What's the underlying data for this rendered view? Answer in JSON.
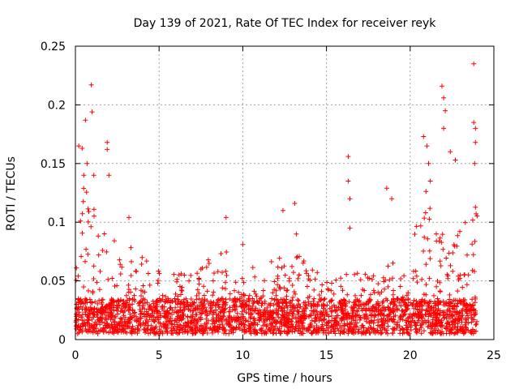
{
  "chart_data": {
    "type": "scatter",
    "title": "Day 139 of 2021, Rate Of TEC Index for receiver reyk",
    "xlabel": "GPS time / hours",
    "ylabel": "ROTI / TECUs",
    "xlim": [
      0,
      25
    ],
    "ylim": [
      0,
      0.25
    ],
    "xticks": [
      0,
      5,
      10,
      15,
      20,
      25
    ],
    "xtick_labels": [
      "0",
      "5",
      "10",
      "15",
      "20",
      "25"
    ],
    "yticks": [
      0,
      0.05,
      0.1,
      0.15,
      0.2,
      0.25
    ],
    "ytick_labels": [
      "0",
      "0.05",
      "0.1",
      "0.15",
      "0.2",
      "0.25"
    ],
    "grid": true,
    "marker": "+",
    "color": "#ff0000",
    "series": [
      {
        "name": "ROTI",
        "data_extent": {
          "x_min": 0.0,
          "x_max": 24.0
        },
        "baseline_range": [
          0.005,
          0.035
        ],
        "envelope": {
          "x": [
            0,
            0.5,
            1,
            1.5,
            2,
            2.5,
            3,
            3.5,
            4,
            5,
            6,
            7,
            8,
            9,
            10,
            11,
            12,
            13,
            14,
            15,
            16,
            17,
            18,
            19,
            20,
            20.5,
            21,
            21.5,
            22,
            22.5,
            23,
            23.5,
            24
          ],
          "upper": [
            0.06,
            0.13,
            0.12,
            0.09,
            0.11,
            0.08,
            0.09,
            0.08,
            0.07,
            0.06,
            0.055,
            0.06,
            0.07,
            0.08,
            0.06,
            0.065,
            0.07,
            0.075,
            0.07,
            0.05,
            0.065,
            0.055,
            0.06,
            0.07,
            0.06,
            0.12,
            0.13,
            0.12,
            0.11,
            0.1,
            0.1,
            0.11,
            0.12
          ]
        },
        "outliers": [
          [
            0.2,
            0.165
          ],
          [
            0.4,
            0.163
          ],
          [
            0.5,
            0.14
          ],
          [
            0.6,
            0.187
          ],
          [
            0.7,
            0.15
          ],
          [
            0.95,
            0.217
          ],
          [
            1.0,
            0.194
          ],
          [
            1.1,
            0.14
          ],
          [
            1.9,
            0.168
          ],
          [
            1.9,
            0.162
          ],
          [
            2.0,
            0.14
          ],
          [
            3.2,
            0.104
          ],
          [
            9.0,
            0.104
          ],
          [
            10.0,
            0.081
          ],
          [
            12.4,
            0.11
          ],
          [
            13.1,
            0.116
          ],
          [
            13.2,
            0.09
          ],
          [
            16.3,
            0.156
          ],
          [
            16.3,
            0.135
          ],
          [
            16.4,
            0.12
          ],
          [
            16.4,
            0.095
          ],
          [
            18.6,
            0.129
          ],
          [
            18.9,
            0.12
          ],
          [
            20.8,
            0.173
          ],
          [
            21.0,
            0.165
          ],
          [
            21.1,
            0.15
          ],
          [
            21.2,
            0.135
          ],
          [
            21.9,
            0.216
          ],
          [
            22.0,
            0.206
          ],
          [
            22.1,
            0.195
          ],
          [
            22.0,
            0.18
          ],
          [
            22.4,
            0.16
          ],
          [
            22.7,
            0.153
          ],
          [
            23.8,
            0.235
          ],
          [
            23.8,
            0.185
          ],
          [
            23.9,
            0.18
          ],
          [
            23.9,
            0.168
          ],
          [
            23.85,
            0.15
          ]
        ]
      }
    ]
  }
}
